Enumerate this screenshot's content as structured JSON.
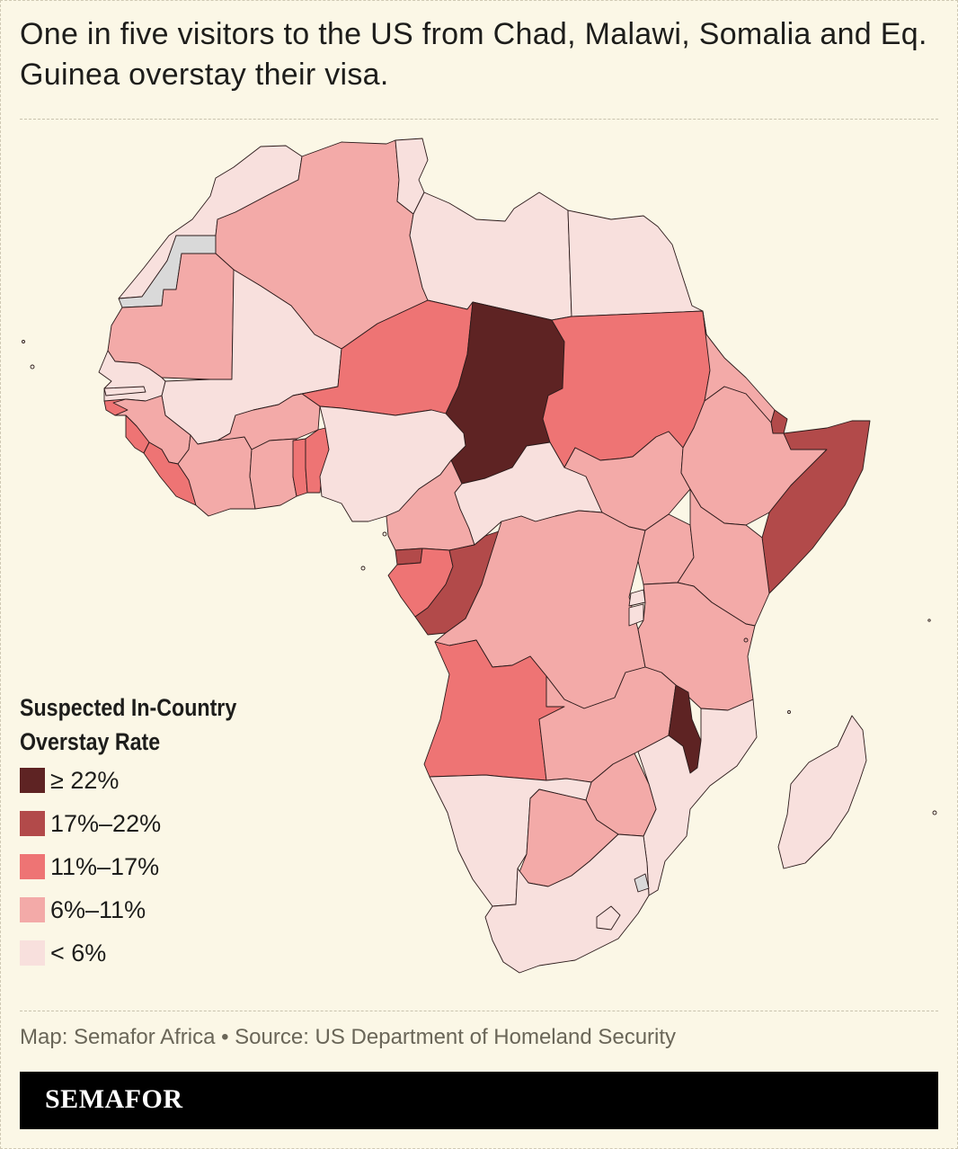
{
  "headline": "One in five visitors to the US from Chad, Malawi, Somalia and Eq. Guinea overstay their visa.",
  "legend": {
    "title_line1": "Suspected In-Country",
    "title_line2": "Overstay Rate",
    "bins": [
      {
        "label": "≥ 22%",
        "color": "#5e2323"
      },
      {
        "label": "17%–22%",
        "color": "#b24a4a"
      },
      {
        "label": "11%–17%",
        "color": "#ee7474"
      },
      {
        "label": "6%–11%",
        "color": "#f3aaa8"
      },
      {
        "label": "< 6%",
        "color": "#f8e0dd"
      }
    ]
  },
  "no_data_color": "#d9d9d9",
  "source": "Map: Semafor Africa • Source: US Department of Homeland Security",
  "brand": "SEMAFOR",
  "countries": [
    {
      "name": "Morocco",
      "bin": 4
    },
    {
      "name": "Western Sahara",
      "bin": -1
    },
    {
      "name": "Algeria",
      "bin": 3
    },
    {
      "name": "Tunisia",
      "bin": 4
    },
    {
      "name": "Libya",
      "bin": 4
    },
    {
      "name": "Egypt",
      "bin": 4
    },
    {
      "name": "Mauritania",
      "bin": 3
    },
    {
      "name": "Mali",
      "bin": 4
    },
    {
      "name": "Niger",
      "bin": 2
    },
    {
      "name": "Chad",
      "bin": 0
    },
    {
      "name": "Sudan",
      "bin": 2
    },
    {
      "name": "Senegal",
      "bin": 4
    },
    {
      "name": "Gambia",
      "bin": 4
    },
    {
      "name": "Guinea-Bissau",
      "bin": 2
    },
    {
      "name": "Guinea",
      "bin": 3
    },
    {
      "name": "Sierra Leone",
      "bin": 2
    },
    {
      "name": "Liberia",
      "bin": 2
    },
    {
      "name": "Cote d'Ivoire",
      "bin": 3
    },
    {
      "name": "Burkina Faso",
      "bin": 3
    },
    {
      "name": "Ghana",
      "bin": 3
    },
    {
      "name": "Togo",
      "bin": 2
    },
    {
      "name": "Benin",
      "bin": 2
    },
    {
      "name": "Nigeria",
      "bin": 4
    },
    {
      "name": "Cameroon",
      "bin": 3
    },
    {
      "name": "Central African Republic",
      "bin": 4
    },
    {
      "name": "South Sudan",
      "bin": 3
    },
    {
      "name": "Eritrea",
      "bin": 3
    },
    {
      "name": "Djibouti",
      "bin": 1
    },
    {
      "name": "Ethiopia",
      "bin": 3
    },
    {
      "name": "Somalia",
      "bin": 1
    },
    {
      "name": "Equatorial Guinea",
      "bin": 1
    },
    {
      "name": "Gabon",
      "bin": 2
    },
    {
      "name": "Republic of the Congo",
      "bin": 1
    },
    {
      "name": "DR Congo",
      "bin": 3
    },
    {
      "name": "Uganda",
      "bin": 3
    },
    {
      "name": "Kenya",
      "bin": 3
    },
    {
      "name": "Rwanda",
      "bin": 4
    },
    {
      "name": "Burundi",
      "bin": 4
    },
    {
      "name": "Tanzania",
      "bin": 3
    },
    {
      "name": "Angola",
      "bin": 2
    },
    {
      "name": "Zambia",
      "bin": 3
    },
    {
      "name": "Malawi",
      "bin": 0
    },
    {
      "name": "Mozambique",
      "bin": 4
    },
    {
      "name": "Zimbabwe",
      "bin": 3
    },
    {
      "name": "Namibia",
      "bin": 4
    },
    {
      "name": "Botswana",
      "bin": 3
    },
    {
      "name": "South Africa",
      "bin": 4
    },
    {
      "name": "Lesotho",
      "bin": 4
    },
    {
      "name": "Eswatini",
      "bin": -1
    },
    {
      "name": "Madagascar",
      "bin": 4
    }
  ]
}
